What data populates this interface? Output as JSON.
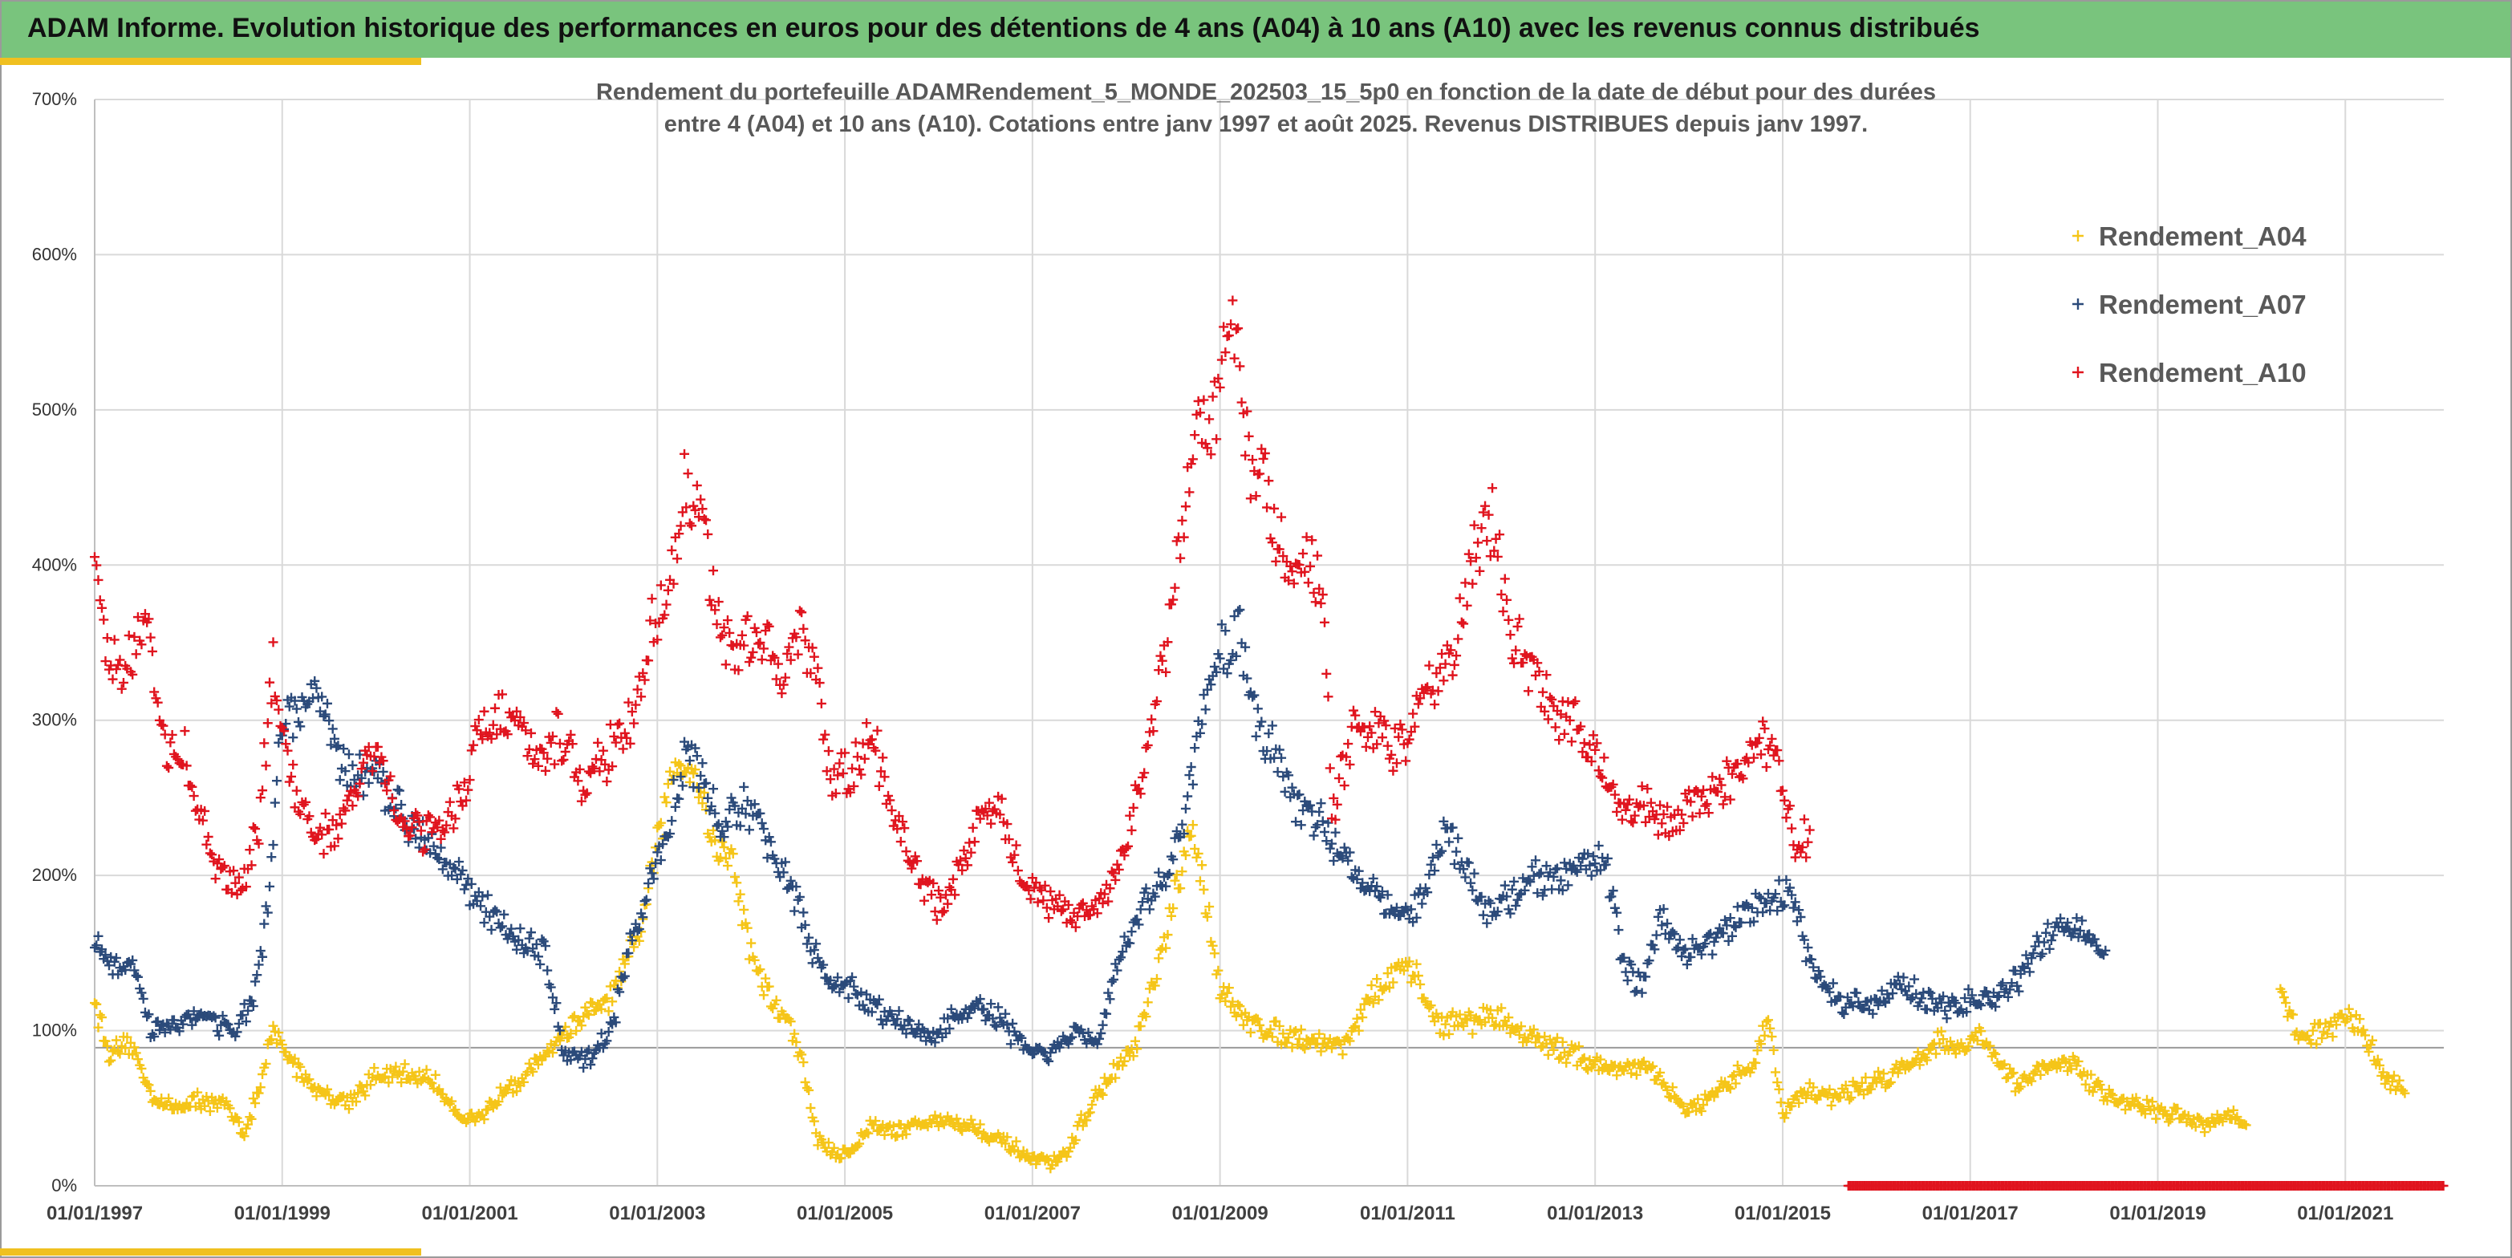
{
  "header": {
    "title": "ADAM Informe. Evolution historique des performances en euros pour des détentions de 4 ans (A04) à 10 ans (A10) avec les revenus connus distribués"
  },
  "colors": {
    "header_bg": "#79c47d",
    "accent": "#f0c020",
    "A04": "#f5c518",
    "A07": "#2b4a7a",
    "A10": "#e0141e",
    "grid": "#d9d9d9"
  },
  "chart_data": {
    "type": "scatter",
    "title_lines": [
      "Rendement du portefeuille ADAMRendement_5_MONDE_202503_15_5p0  en fonction de la date de début pour des durées",
      "entre 4 (A04) et 10 ans (A10). Cotations entre janv 1997 et août 2025. Revenus DISTRIBUES depuis janv 1997."
    ],
    "x_tick_labels": [
      "01/01/1997",
      "01/01/1999",
      "01/01/2001",
      "01/01/2003",
      "01/01/2005",
      "01/01/2007",
      "01/01/2009",
      "01/01/2011",
      "01/01/2013",
      "01/01/2015",
      "01/01/2017",
      "01/01/2019",
      "01/01/2021"
    ],
    "y_tick_labels": [
      "0%",
      "100%",
      "200%",
      "300%",
      "400%",
      "500%",
      "600%",
      "700%"
    ],
    "xlim": [
      1997.0,
      2022.05
    ],
    "ylim": [
      0,
      700
    ],
    "grid": true,
    "legend_position": "top-right",
    "series": [
      {
        "name": "Rendement_A04",
        "marker": "+",
        "color": "#f5c518",
        "x_end": 2021.65,
        "gap": [
          2019.95,
          2020.3
        ],
        "anchors": [
          [
            1997.0,
            120
          ],
          [
            1997.15,
            85
          ],
          [
            1997.4,
            90
          ],
          [
            1997.6,
            60
          ],
          [
            1997.8,
            50
          ],
          [
            1998.1,
            55
          ],
          [
            1998.4,
            52
          ],
          [
            1998.6,
            35
          ],
          [
            1998.75,
            60
          ],
          [
            1998.9,
            100
          ],
          [
            1999.1,
            80
          ],
          [
            1999.4,
            60
          ],
          [
            1999.7,
            55
          ],
          [
            2000.0,
            70
          ],
          [
            2000.3,
            72
          ],
          [
            2000.6,
            68
          ],
          [
            2000.9,
            45
          ],
          [
            2001.1,
            42
          ],
          [
            2001.4,
            65
          ],
          [
            2001.6,
            70
          ],
          [
            2001.9,
            92
          ],
          [
            2002.2,
            108
          ],
          [
            2002.5,
            120
          ],
          [
            2002.8,
            160
          ],
          [
            2003.0,
            220
          ],
          [
            2003.2,
            275
          ],
          [
            2003.4,
            270
          ],
          [
            2003.6,
            220
          ],
          [
            2003.8,
            210
          ],
          [
            2004.0,
            150
          ],
          [
            2004.2,
            120
          ],
          [
            2004.4,
            105
          ],
          [
            2004.55,
            80
          ],
          [
            2004.7,
            30
          ],
          [
            2004.9,
            20
          ],
          [
            2005.1,
            25
          ],
          [
            2005.3,
            40
          ],
          [
            2005.5,
            35
          ],
          [
            2005.8,
            40
          ],
          [
            2006.1,
            42
          ],
          [
            2006.4,
            38
          ],
          [
            2006.6,
            30
          ],
          [
            2006.8,
            25
          ],
          [
            2007.0,
            15
          ],
          [
            2007.3,
            15
          ],
          [
            2007.6,
            50
          ],
          [
            2007.9,
            75
          ],
          [
            2008.1,
            90
          ],
          [
            2008.3,
            130
          ],
          [
            2008.5,
            180
          ],
          [
            2008.7,
            230
          ],
          [
            2008.8,
            200
          ],
          [
            2009.0,
            130
          ],
          [
            2009.2,
            110
          ],
          [
            2009.5,
            100
          ],
          [
            2009.9,
            95
          ],
          [
            2010.3,
            90
          ],
          [
            2010.6,
            120
          ],
          [
            2010.9,
            140
          ],
          [
            2011.1,
            135
          ],
          [
            2011.3,
            105
          ],
          [
            2011.6,
            105
          ],
          [
            2011.9,
            110
          ],
          [
            2012.2,
            100
          ],
          [
            2012.5,
            90
          ],
          [
            2012.8,
            85
          ],
          [
            2013.0,
            78
          ],
          [
            2013.3,
            76
          ],
          [
            2013.6,
            75
          ],
          [
            2013.8,
            60
          ],
          [
            2014.0,
            48
          ],
          [
            2014.3,
            58
          ],
          [
            2014.5,
            70
          ],
          [
            2014.7,
            80
          ],
          [
            2014.85,
            110
          ],
          [
            2015.0,
            45
          ],
          [
            2015.2,
            60
          ],
          [
            2015.5,
            58
          ],
          [
            2015.8,
            62
          ],
          [
            2016.1,
            70
          ],
          [
            2016.4,
            80
          ],
          [
            2016.7,
            95
          ],
          [
            2016.9,
            85
          ],
          [
            2017.1,
            100
          ],
          [
            2017.2,
            90
          ],
          [
            2017.5,
            65
          ],
          [
            2017.8,
            75
          ],
          [
            2018.1,
            80
          ],
          [
            2018.3,
            65
          ],
          [
            2018.6,
            55
          ],
          [
            2018.9,
            50
          ],
          [
            2019.2,
            45
          ],
          [
            2019.5,
            40
          ],
          [
            2019.7,
            45
          ],
          [
            2019.95,
            40
          ],
          [
            2020.3,
            130
          ],
          [
            2020.5,
            95
          ],
          [
            2020.8,
            100
          ],
          [
            2021.0,
            110
          ],
          [
            2021.2,
            100
          ],
          [
            2021.4,
            70
          ],
          [
            2021.65,
            62
          ]
        ]
      },
      {
        "name": "Rendement_A07",
        "marker": "+",
        "color": "#2b4a7a",
        "x_end": 2018.45,
        "anchors": [
          [
            1997.0,
            160
          ],
          [
            1997.2,
            140
          ],
          [
            1997.4,
            140
          ],
          [
            1997.6,
            100
          ],
          [
            1997.8,
            105
          ],
          [
            1998.2,
            110
          ],
          [
            1998.5,
            100
          ],
          [
            1998.7,
            120
          ],
          [
            1998.85,
            180
          ],
          [
            1999.0,
            300
          ],
          [
            1999.2,
            305
          ],
          [
            1999.4,
            320
          ],
          [
            1999.6,
            270
          ],
          [
            1999.8,
            265
          ],
          [
            2000.0,
            260
          ],
          [
            2000.3,
            240
          ],
          [
            2000.6,
            220
          ],
          [
            2000.8,
            210
          ],
          [
            2001.0,
            190
          ],
          [
            2001.2,
            175
          ],
          [
            2001.4,
            165
          ],
          [
            2001.6,
            155
          ],
          [
            2001.8,
            150
          ],
          [
            2002.0,
            85
          ],
          [
            2002.3,
            80
          ],
          [
            2002.5,
            100
          ],
          [
            2002.7,
            150
          ],
          [
            2002.9,
            190
          ],
          [
            2003.1,
            230
          ],
          [
            2003.3,
            280
          ],
          [
            2003.5,
            260
          ],
          [
            2003.7,
            230
          ],
          [
            2003.9,
            245
          ],
          [
            2004.1,
            230
          ],
          [
            2004.4,
            200
          ],
          [
            2004.6,
            160
          ],
          [
            2004.8,
            130
          ],
          [
            2005.0,
            130
          ],
          [
            2005.3,
            115
          ],
          [
            2005.6,
            105
          ],
          [
            2005.9,
            95
          ],
          [
            2006.1,
            105
          ],
          [
            2006.4,
            115
          ],
          [
            2006.6,
            110
          ],
          [
            2006.9,
            90
          ],
          [
            2007.2,
            85
          ],
          [
            2007.5,
            100
          ],
          [
            2007.7,
            90
          ],
          [
            2007.9,
            140
          ],
          [
            2008.1,
            170
          ],
          [
            2008.4,
            200
          ],
          [
            2008.6,
            230
          ],
          [
            2008.8,
            300
          ],
          [
            2009.0,
            340
          ],
          [
            2009.2,
            360
          ],
          [
            2009.35,
            310
          ],
          [
            2009.5,
            290
          ],
          [
            2009.8,
            250
          ],
          [
            2010.1,
            230
          ],
          [
            2010.4,
            205
          ],
          [
            2010.7,
            190
          ],
          [
            2011.0,
            170
          ],
          [
            2011.2,
            190
          ],
          [
            2011.4,
            230
          ],
          [
            2011.6,
            210
          ],
          [
            2011.8,
            180
          ],
          [
            2012.0,
            180
          ],
          [
            2012.3,
            200
          ],
          [
            2012.6,
            195
          ],
          [
            2012.9,
            210
          ],
          [
            2013.1,
            215
          ],
          [
            2013.3,
            140
          ],
          [
            2013.5,
            130
          ],
          [
            2013.7,
            170
          ],
          [
            2014.0,
            150
          ],
          [
            2014.3,
            160
          ],
          [
            2014.6,
            175
          ],
          [
            2014.9,
            185
          ],
          [
            2015.1,
            190
          ],
          [
            2015.3,
            140
          ],
          [
            2015.6,
            120
          ],
          [
            2015.9,
            115
          ],
          [
            2016.2,
            130
          ],
          [
            2016.5,
            120
          ],
          [
            2016.8,
            115
          ],
          [
            2017.1,
            120
          ],
          [
            2017.4,
            125
          ],
          [
            2017.7,
            150
          ],
          [
            2018.0,
            170
          ],
          [
            2018.2,
            165
          ],
          [
            2018.45,
            150
          ]
        ]
      },
      {
        "name": "Rendement_A10",
        "marker": "+",
        "color": "#e0141e",
        "x_end": 2015.3,
        "anchors": [
          [
            1997.0,
            415
          ],
          [
            1997.15,
            335
          ],
          [
            1997.35,
            335
          ],
          [
            1997.55,
            360
          ],
          [
            1997.75,
            280
          ],
          [
            1997.95,
            280
          ],
          [
            1998.15,
            230
          ],
          [
            1998.35,
            200
          ],
          [
            1998.55,
            190
          ],
          [
            1998.75,
            230
          ],
          [
            1998.9,
            335
          ],
          [
            1999.1,
            260
          ],
          [
            1999.3,
            230
          ],
          [
            1999.55,
            225
          ],
          [
            1999.8,
            260
          ],
          [
            2000.0,
            280
          ],
          [
            2000.2,
            245
          ],
          [
            2000.45,
            230
          ],
          [
            2000.7,
            230
          ],
          [
            2000.9,
            250
          ],
          [
            2001.1,
            290
          ],
          [
            2001.3,
            305
          ],
          [
            2001.5,
            300
          ],
          [
            2001.7,
            270
          ],
          [
            2001.95,
            290
          ],
          [
            2002.2,
            260
          ],
          [
            2002.5,
            280
          ],
          [
            2002.75,
            300
          ],
          [
            2002.95,
            360
          ],
          [
            2003.15,
            400
          ],
          [
            2003.3,
            450
          ],
          [
            2003.5,
            420
          ],
          [
            2003.7,
            350
          ],
          [
            2003.9,
            345
          ],
          [
            2004.1,
            360
          ],
          [
            2004.35,
            330
          ],
          [
            2004.55,
            355
          ],
          [
            2004.7,
            320
          ],
          [
            2004.85,
            260
          ],
          [
            2005.1,
            270
          ],
          [
            2005.3,
            290
          ],
          [
            2005.5,
            240
          ],
          [
            2005.8,
            200
          ],
          [
            2006.0,
            180
          ],
          [
            2006.2,
            200
          ],
          [
            2006.45,
            240
          ],
          [
            2006.65,
            240
          ],
          [
            2006.9,
            200
          ],
          [
            2007.2,
            180
          ],
          [
            2007.45,
            175
          ],
          [
            2007.7,
            180
          ],
          [
            2007.9,
            205
          ],
          [
            2008.15,
            260
          ],
          [
            2008.35,
            320
          ],
          [
            2008.55,
            400
          ],
          [
            2008.75,
            480
          ],
          [
            2008.95,
            500
          ],
          [
            2009.1,
            575
          ],
          [
            2009.3,
            470
          ],
          [
            2009.5,
            450
          ],
          [
            2009.7,
            400
          ],
          [
            2009.9,
            410
          ],
          [
            2010.1,
            380
          ],
          [
            2010.2,
            240
          ],
          [
            2010.45,
            300
          ],
          [
            2010.7,
            290
          ],
          [
            2010.95,
            280
          ],
          [
            2011.2,
            320
          ],
          [
            2011.5,
            340
          ],
          [
            2011.7,
            410
          ],
          [
            2011.9,
            430
          ],
          [
            2012.1,
            360
          ],
          [
            2012.35,
            330
          ],
          [
            2012.6,
            300
          ],
          [
            2012.8,
            300
          ],
          [
            2013.0,
            280
          ],
          [
            2013.25,
            240
          ],
          [
            2013.5,
            250
          ],
          [
            2013.7,
            230
          ],
          [
            2014.0,
            245
          ],
          [
            2014.25,
            250
          ],
          [
            2014.5,
            265
          ],
          [
            2014.7,
            280
          ],
          [
            2014.9,
            290
          ],
          [
            2015.05,
            240
          ],
          [
            2015.15,
            220
          ],
          [
            2015.3,
            225
          ]
        ]
      }
    ],
    "zero_band": {
      "x_start": 2015.7,
      "x_end": 2022.05,
      "y": 0,
      "color": "#e0141e"
    }
  }
}
